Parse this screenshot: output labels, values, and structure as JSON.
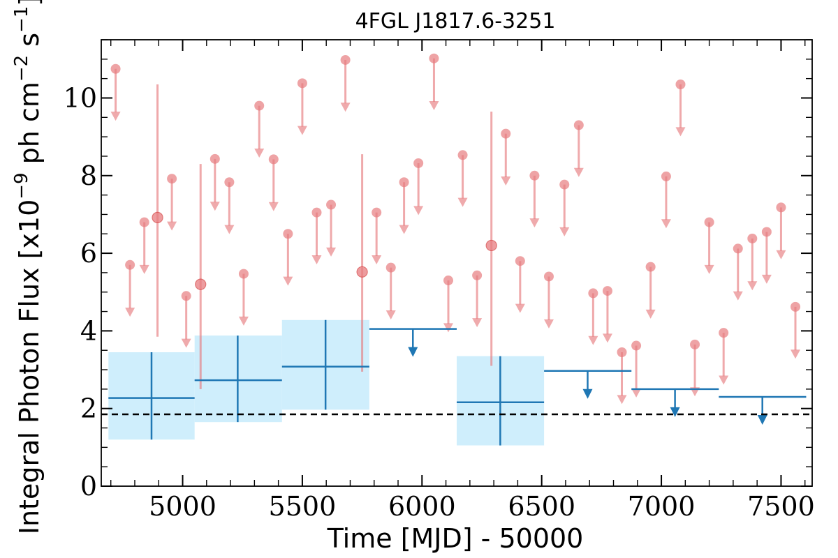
{
  "chart_data": {
    "type": "scatter",
    "title": "4FGL J1817.6-3251",
    "xlabel": "Time [MJD] - 50000",
    "ylabel": "Integral Photon Flux [x10",
    "ylabel_exp": "−9",
    "ylabel_mid": " ph cm",
    "ylabel_exp2": "−2",
    "ylabel_mid2": " s",
    "ylabel_exp3": "−1",
    "ylabel_end": "]",
    "xlim": [
      4660,
      7630
    ],
    "ylim": [
      0,
      11.5
    ],
    "x_ticks": [
      5000,
      5500,
      6000,
      6500,
      7000,
      7500
    ],
    "y_ticks": [
      0,
      2,
      4,
      6,
      8,
      10
    ],
    "x_tick_labels": [
      "5000",
      "5500",
      "6000",
      "6500",
      "7000",
      "7500"
    ],
    "y_tick_labels": [
      "0",
      "2",
      "4",
      "6",
      "8",
      "10"
    ],
    "reference_line": {
      "y": 1.85,
      "style": "dashed",
      "color": "#000000"
    },
    "colors": {
      "monthly": "#e77c7f",
      "yearly": "#1f77b4",
      "yearly_band": "#cfeefc"
    },
    "series": [
      {
        "kind": "monthly_upper_limits",
        "points": [
          [
            4720,
            10.75
          ],
          [
            4780,
            5.7
          ],
          [
            4840,
            6.8
          ],
          [
            4955,
            7.92
          ],
          [
            5015,
            4.9
          ],
          [
            5135,
            8.43
          ],
          [
            5195,
            7.83
          ],
          [
            5255,
            5.47
          ],
          [
            5320,
            9.8
          ],
          [
            5380,
            8.42
          ],
          [
            5440,
            6.5
          ],
          [
            5500,
            10.38
          ],
          [
            5560,
            7.05
          ],
          [
            5620,
            7.25
          ],
          [
            5680,
            10.98
          ],
          [
            5810,
            7.05
          ],
          [
            5870,
            5.63
          ],
          [
            5925,
            7.83
          ],
          [
            5985,
            8.32
          ],
          [
            6050,
            11.02
          ],
          [
            6110,
            5.3
          ],
          [
            6170,
            8.53
          ],
          [
            6230,
            5.43
          ],
          [
            6350,
            9.08
          ],
          [
            6410,
            5.8
          ],
          [
            6470,
            8.0
          ],
          [
            6530,
            5.4
          ],
          [
            6595,
            7.77
          ],
          [
            6655,
            9.3
          ],
          [
            6715,
            4.97
          ],
          [
            6775,
            5.03
          ],
          [
            6835,
            3.45
          ],
          [
            6895,
            3.62
          ],
          [
            6955,
            5.65
          ],
          [
            7020,
            7.98
          ],
          [
            7080,
            10.35
          ],
          [
            7140,
            3.65
          ],
          [
            7200,
            6.8
          ],
          [
            7260,
            3.95
          ],
          [
            7320,
            6.12
          ],
          [
            7380,
            6.38
          ],
          [
            7440,
            6.55
          ],
          [
            7500,
            7.18
          ],
          [
            7560,
            4.62
          ]
        ]
      },
      {
        "kind": "monthly_detections",
        "points": [
          {
            "x": 4895,
            "y": 6.92,
            "ylo": 3.85,
            "yhi": 10.35
          },
          {
            "x": 5075,
            "y": 5.2,
            "ylo": 2.5,
            "yhi": 8.3
          },
          {
            "x": 5750,
            "y": 5.52,
            "ylo": 2.95,
            "yhi": 8.55
          },
          {
            "x": 6290,
            "y": 6.2,
            "ylo": 3.1,
            "yhi": 9.65
          }
        ]
      },
      {
        "kind": "yearly_detections",
        "points": [
          {
            "x0": 4690,
            "x1": 5050,
            "x": 4870,
            "y": 2.27,
            "ylo": 1.2,
            "yhi": 3.45
          },
          {
            "x0": 5050,
            "x1": 5415,
            "x": 5230,
            "y": 2.73,
            "ylo": 1.65,
            "yhi": 3.88
          },
          {
            "x0": 5415,
            "x1": 5780,
            "x": 5597,
            "y": 3.08,
            "ylo": 1.97,
            "yhi": 4.28
          },
          {
            "x0": 6145,
            "x1": 6510,
            "x": 6327,
            "y": 2.16,
            "ylo": 1.05,
            "yhi": 3.35
          }
        ]
      },
      {
        "kind": "yearly_upper_limits",
        "points": [
          {
            "x0": 5780,
            "x1": 6145,
            "x": 5962,
            "y": 4.05
          },
          {
            "x0": 6510,
            "x1": 6875,
            "x": 6692,
            "y": 2.97
          },
          {
            "x0": 6875,
            "x1": 7240,
            "x": 7057,
            "y": 2.5
          },
          {
            "x0": 7240,
            "x1": 7605,
            "x": 7422,
            "y": 2.3
          }
        ]
      }
    ]
  }
}
